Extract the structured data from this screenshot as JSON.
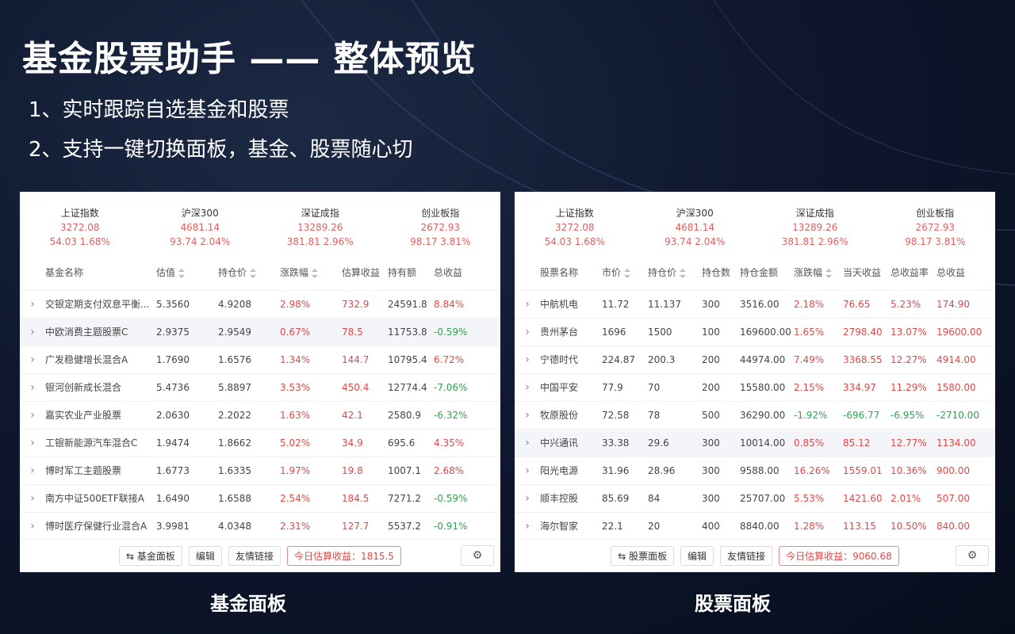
{
  "hero": {
    "title": "基金股票助手 —— 整体预览",
    "features": [
      "1、实时跟踪自选基金和股票",
      "2、支持一键切换面板，基金、股票随心切"
    ]
  },
  "indices": [
    {
      "name": "上证指数",
      "value": "3272.08",
      "change": "54.03  1.68%"
    },
    {
      "name": "沪深300",
      "value": "4681.14",
      "change": "93.74  2.04%"
    },
    {
      "name": "深证成指",
      "value": "13289.26",
      "change": "381.81  2.96%"
    },
    {
      "name": "创业板指",
      "value": "2672.93",
      "change": "98.17  3.81%"
    }
  ],
  "fund_panel": {
    "headers": [
      "基金名称",
      "估值",
      "持仓价",
      "涨跌幅",
      "估算收益",
      "持有额",
      "总收益"
    ],
    "rows": [
      [
        "交银定期支付双息平衡...",
        "5.3560",
        "4.9208",
        "2.98%",
        "732.9",
        "24591.8",
        "8.84%"
      ],
      [
        "中欧消费主题股票C",
        "2.9375",
        "2.9549",
        "0.67%",
        "78.5",
        "11753.8",
        "-0.59%"
      ],
      [
        "广发稳健增长混合A",
        "1.7690",
        "1.6576",
        "1.34%",
        "144.7",
        "10795.4",
        "6.72%"
      ],
      [
        "银河创新成长混合",
        "5.4736",
        "5.8897",
        "3.53%",
        "450.4",
        "12774.4",
        "-7.06%"
      ],
      [
        "嘉实农业产业股票",
        "2.0630",
        "2.2022",
        "1.63%",
        "42.1",
        "2580.9",
        "-6.32%"
      ],
      [
        "工银新能源汽车混合C",
        "1.9474",
        "1.8662",
        "5.02%",
        "34.9",
        "695.6",
        "4.35%"
      ],
      [
        "博时军工主题股票",
        "1.6773",
        "1.6335",
        "1.97%",
        "19.8",
        "1007.1",
        "2.68%"
      ],
      [
        "南方中证500ETF联接A",
        "1.6490",
        "1.6588",
        "2.54%",
        "184.5",
        "7271.2",
        "-0.59%"
      ],
      [
        "博时医疗保健行业混合A",
        "3.9981",
        "4.0348",
        "2.31%",
        "127.7",
        "5537.2",
        "-0.91%"
      ]
    ],
    "footer": {
      "switch": "⇆ 基金面板",
      "edit": "编辑",
      "links": "友情链接",
      "earnings": "今日估算收益：1815.5"
    }
  },
  "stock_panel": {
    "headers": [
      "股票名称",
      "市价",
      "持仓价",
      "持仓数",
      "持仓金额",
      "涨跌幅",
      "当天收益",
      "总收益率",
      "总收益"
    ],
    "rows": [
      [
        "中航机电",
        "11.72",
        "11.137",
        "300",
        "3516.00",
        "2.18%",
        "76.65",
        "5.23%",
        "174.90"
      ],
      [
        "贵州茅台",
        "1696",
        "1500",
        "100",
        "169600.00",
        "1.65%",
        "2798.40",
        "13.07%",
        "19600.00"
      ],
      [
        "宁德时代",
        "224.87",
        "200.3",
        "200",
        "44974.00",
        "7.49%",
        "3368.55",
        "12.27%",
        "4914.00"
      ],
      [
        "中国平安",
        "77.9",
        "70",
        "200",
        "15580.00",
        "2.15%",
        "334.97",
        "11.29%",
        "1580.00"
      ],
      [
        "牧原股份",
        "72.58",
        "78",
        "500",
        "36290.00",
        "-1.92%",
        "-696.77",
        "-6.95%",
        "-2710.00"
      ],
      [
        "中兴通讯",
        "33.38",
        "29.6",
        "300",
        "10014.00",
        "0.85%",
        "85.12",
        "12.77%",
        "1134.00"
      ],
      [
        "阳光电源",
        "31.96",
        "28.96",
        "300",
        "9588.00",
        "16.26%",
        "1559.01",
        "10.36%",
        "900.00"
      ],
      [
        "顺丰控股",
        "85.69",
        "84",
        "300",
        "25707.00",
        "5.53%",
        "1421.60",
        "2.01%",
        "507.00"
      ],
      [
        "海尔智家",
        "22.1",
        "20",
        "400",
        "8840.00",
        "1.28%",
        "113.15",
        "10.50%",
        "840.00"
      ]
    ],
    "footer": {
      "switch": "⇆ 股票面板",
      "edit": "编辑",
      "links": "友情链接",
      "earnings": "今日估算收益：9060.68"
    }
  },
  "captions": {
    "fund": "基金面板",
    "stock": "股票面板"
  },
  "colors": {
    "up": "#e04848",
    "down": "#2ea44f"
  }
}
